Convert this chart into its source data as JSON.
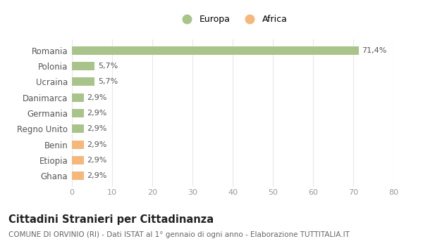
{
  "categories": [
    "Romania",
    "Polonia",
    "Ucraina",
    "Danimarca",
    "Germania",
    "Regno Unito",
    "Benin",
    "Etiopia",
    "Ghana"
  ],
  "values": [
    71.4,
    5.7,
    5.7,
    2.9,
    2.9,
    2.9,
    2.9,
    2.9,
    2.9
  ],
  "labels": [
    "71,4%",
    "5,7%",
    "5,7%",
    "2,9%",
    "2,9%",
    "2,9%",
    "2,9%",
    "2,9%",
    "2,9%"
  ],
  "colors": [
    "#a8c48a",
    "#a8c48a",
    "#a8c48a",
    "#a8c48a",
    "#a8c48a",
    "#a8c48a",
    "#f5b87a",
    "#f5b87a",
    "#f5b87a"
  ],
  "legend": [
    {
      "label": "Europa",
      "color": "#a8c48a"
    },
    {
      "label": "Africa",
      "color": "#f5b87a"
    }
  ],
  "xlim": [
    0,
    80
  ],
  "xticks": [
    0,
    10,
    20,
    30,
    40,
    50,
    60,
    70,
    80
  ],
  "title": "Cittadini Stranieri per Cittadinanza",
  "subtitle": "COMUNE DI ORVINIO (RI) - Dati ISTAT al 1° gennaio di ogni anno - Elaborazione TUTTITALIA.IT",
  "background_color": "#ffffff",
  "grid_color": "#e8e8e8"
}
